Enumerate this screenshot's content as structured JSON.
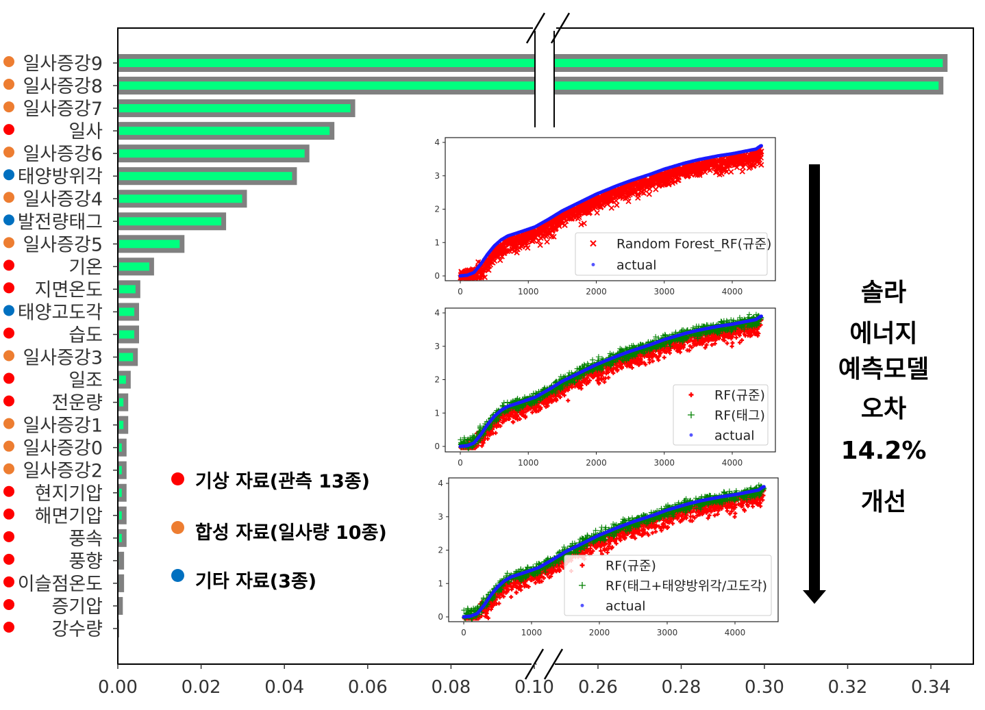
{
  "chart_data": {
    "type": "bar",
    "orientation": "horizontal",
    "title": "",
    "xlabel": "",
    "ylabel": "",
    "x_axis_break": [
      0.1,
      0.25
    ],
    "xlim_left": [
      0.0,
      0.1
    ],
    "xlim_right": [
      0.25,
      0.345
    ],
    "xticks": [
      "0.00",
      "0.02",
      "0.04",
      "0.06",
      "0.08",
      "0.10",
      "0.26",
      "0.28",
      "0.30",
      "0.32",
      "0.34"
    ],
    "xtick_values": [
      0.0,
      0.02,
      0.04,
      0.06,
      0.08,
      0.1,
      0.26,
      0.28,
      0.3,
      0.32,
      0.34
    ],
    "categories": [
      "일사증강9",
      "일사증강8",
      "일사증강7",
      "일사",
      "일사증강6",
      "태양방위각",
      "일사증강4",
      "발전량태그",
      "일사증강5",
      "기온",
      "지면온도",
      "태양고도각",
      "습도",
      "일사증강3",
      "일조",
      "전운량",
      "일사증강1",
      "일사증강0",
      "일사증강2",
      "현지기압",
      "해면기압",
      "풍속",
      "풍향",
      "이슬점온도",
      "증기압",
      "강수량"
    ],
    "values": [
      0.344,
      0.343,
      0.057,
      0.052,
      0.046,
      0.043,
      0.031,
      0.026,
      0.016,
      0.0087,
      0.0054,
      0.0051,
      0.0051,
      0.0048,
      0.0031,
      0.0025,
      0.0025,
      0.0021,
      0.0021,
      0.0021,
      0.0021,
      0.0021,
      0.0015,
      0.0015,
      0.0012,
      0.0003
    ],
    "groups": [
      "synthetic",
      "synthetic",
      "synthetic",
      "weather",
      "synthetic",
      "other",
      "synthetic",
      "other",
      "synthetic",
      "weather",
      "weather",
      "other",
      "weather",
      "synthetic",
      "weather",
      "weather",
      "synthetic",
      "synthetic",
      "synthetic",
      "weather",
      "weather",
      "weather",
      "weather",
      "weather",
      "weather",
      "weather"
    ],
    "bar_colors": {
      "fill": "#00ff7f",
      "edge": "#808080"
    },
    "group_colors": {
      "weather": "#ff0000",
      "synthetic": "#ed7d31",
      "other": "#0070c0"
    },
    "legend": [
      {
        "group": "weather",
        "label": "기상 자료(관측 13종)"
      },
      {
        "group": "synthetic",
        "label": "합성 자료(일사량 10종)"
      },
      {
        "group": "other",
        "label": "기타 자료(3종)"
      }
    ],
    "insets": [
      {
        "type": "scatter",
        "xlim": [
          -100,
          4550
        ],
        "ylim": [
          -0.15,
          4.1
        ],
        "xticks": [
          "0",
          "1000",
          "2000",
          "3000",
          "4000"
        ],
        "yticks": [
          "0",
          "1",
          "2",
          "3",
          "4"
        ],
        "series": [
          {
            "name": "Random Forest_RF(규준)",
            "marker": "x",
            "color": "#ff0000"
          },
          {
            "name": "actual",
            "marker": "o",
            "color": "#0000ff"
          }
        ]
      },
      {
        "type": "scatter",
        "xlim": [
          -100,
          4550
        ],
        "ylim": [
          -0.15,
          4.1
        ],
        "xticks": [
          "0",
          "1000",
          "2000",
          "3000",
          "4000"
        ],
        "yticks": [
          "0",
          "1",
          "2",
          "3",
          "4"
        ],
        "series": [
          {
            "name": "RF(규준)",
            "marker": "P",
            "color": "#ff0000"
          },
          {
            "name": "RF(태그)",
            "marker": "+",
            "color": "#008000"
          },
          {
            "name": "actual",
            "marker": "o",
            "color": "#0000ff"
          }
        ]
      },
      {
        "type": "scatter",
        "xlim": [
          -100,
          4550
        ],
        "ylim": [
          -0.15,
          4.1
        ],
        "xticks": [
          "0",
          "1000",
          "2000",
          "3000",
          "4000"
        ],
        "yticks": [
          "0",
          "1",
          "2",
          "3",
          "4"
        ],
        "series": [
          {
            "name": "RF(규준)",
            "marker": "P",
            "color": "#ff0000"
          },
          {
            "name": "RF(태그+태양방위각/고도각)",
            "marker": "+",
            "color": "#008000"
          },
          {
            "name": "actual",
            "marker": "o",
            "color": "#0000ff"
          }
        ]
      }
    ],
    "actual_curve": {
      "x": [
        0,
        100,
        200,
        300,
        400,
        500,
        600,
        700,
        900,
        1100,
        1300,
        1500,
        1700,
        2000,
        2300,
        2500,
        2800,
        3000,
        3300,
        3500,
        3800,
        4000,
        4200,
        4350,
        4420
      ],
      "y": [
        0,
        0.02,
        0.1,
        0.35,
        0.65,
        0.9,
        1.08,
        1.2,
        1.33,
        1.47,
        1.7,
        1.95,
        2.15,
        2.45,
        2.7,
        2.85,
        3.05,
        3.2,
        3.38,
        3.48,
        3.6,
        3.66,
        3.74,
        3.8,
        3.9
      ]
    }
  },
  "annotation": {
    "lines": [
      "솔라",
      "에너지",
      "예측모델",
      "오차",
      "14.2%",
      "개선"
    ]
  }
}
